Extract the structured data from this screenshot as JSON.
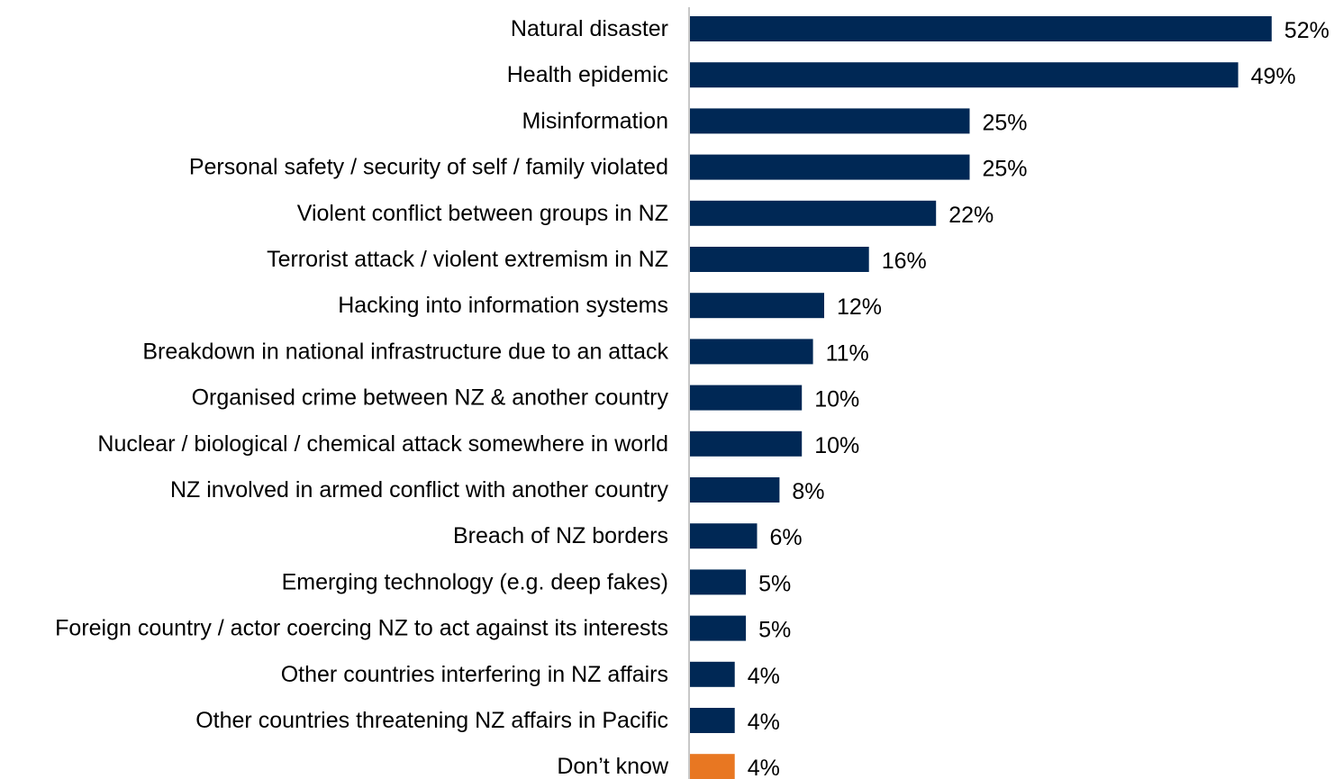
{
  "chart_data": {
    "type": "bar",
    "orientation": "horizontal",
    "title": "",
    "xlabel": "",
    "ylabel": "",
    "categories": [
      "Natural disaster",
      "Health epidemic",
      "Misinformation",
      "Personal safety / security of self / family violated",
      "Violent conflict between groups in NZ",
      "Terrorist attack / violent extremism in NZ",
      "Hacking into information systems",
      "Breakdown in national infrastructure due to an attack",
      "Organised crime between NZ & another country",
      "Nuclear / biological / chemical attack somewhere in world",
      "NZ involved in armed conflict with another country",
      "Breach of NZ borders",
      "Emerging technology (e.g. deep fakes)",
      "Foreign country / actor coercing NZ to act against its interests",
      "Other countries interfering in NZ affairs",
      "Other countries threatening NZ affairs in Pacific",
      "Don’t know"
    ],
    "values": [
      52,
      49,
      25,
      25,
      22,
      16,
      12,
      11,
      10,
      10,
      8,
      6,
      5,
      5,
      4,
      4,
      4
    ],
    "value_labels": [
      "52%",
      "49%",
      "25%",
      "25%",
      "22%",
      "16%",
      "12%",
      "11%",
      "10%",
      "10%",
      "8%",
      "6%",
      "5%",
      "5%",
      "4%",
      "4%",
      "4%"
    ],
    "bar_colors": [
      "#002855",
      "#002855",
      "#002855",
      "#002855",
      "#002855",
      "#002855",
      "#002855",
      "#002855",
      "#002855",
      "#002855",
      "#002855",
      "#002855",
      "#002855",
      "#002855",
      "#002855",
      "#002855",
      "#E87722"
    ],
    "xlim": [
      0,
      52
    ],
    "grid": false,
    "legend": "none"
  }
}
